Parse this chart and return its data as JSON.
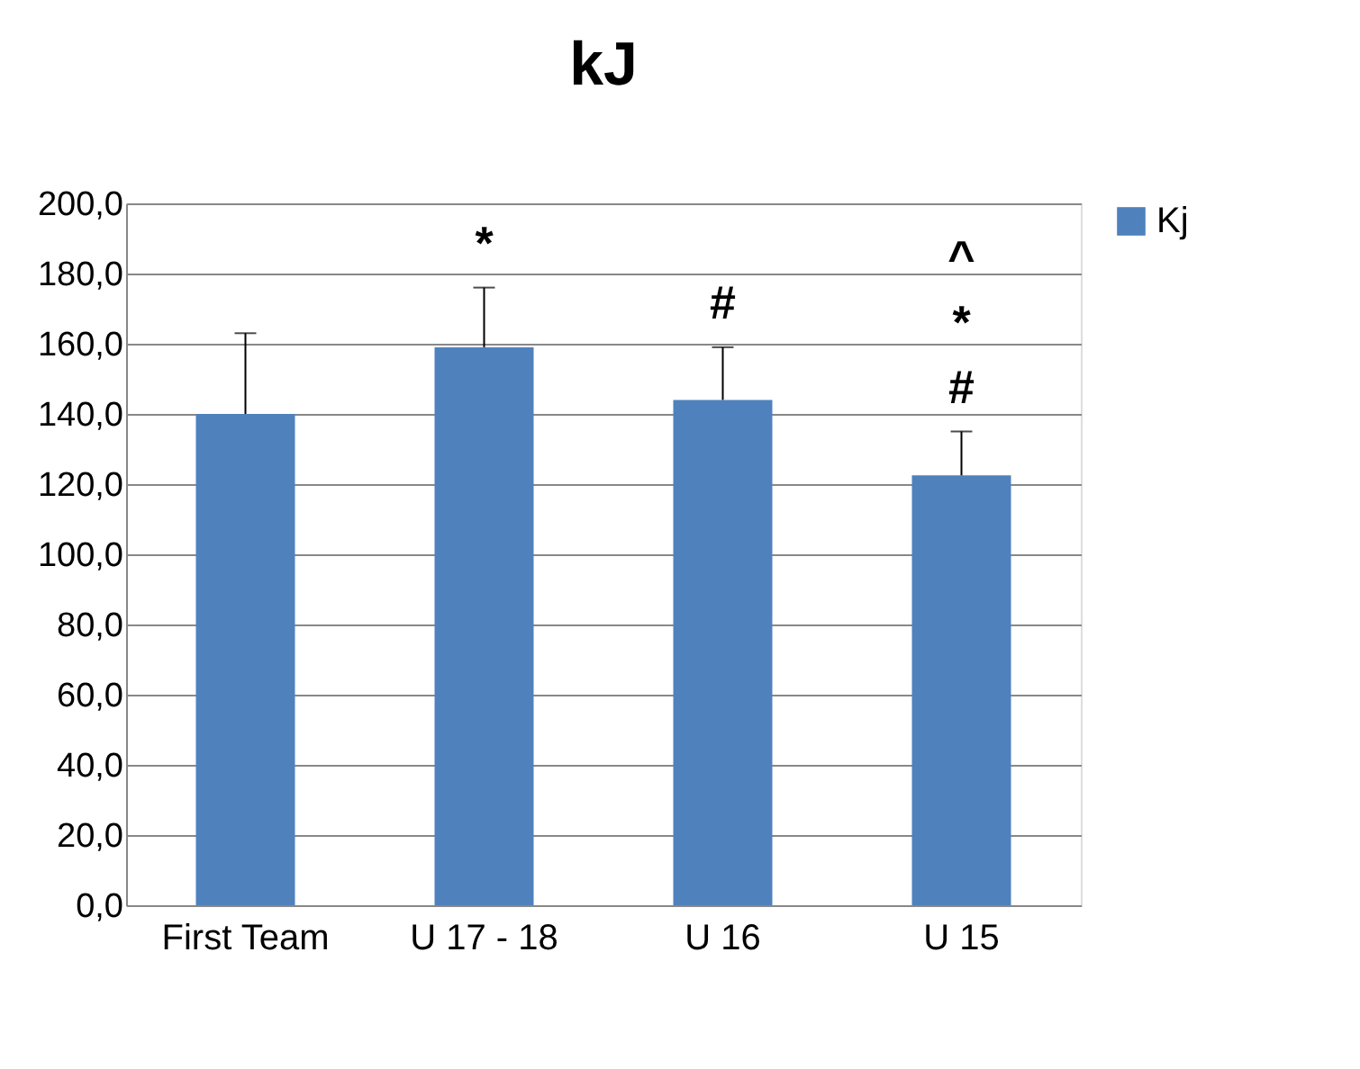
{
  "chart_data": {
    "type": "bar",
    "title": "kJ",
    "categories": [
      "First Team",
      "U 17 - 18",
      "U 16",
      "U 15"
    ],
    "series": [
      {
        "name": "Kj",
        "color": "#4f81bd",
        "values": [
          140,
          159,
          144,
          122.5
        ],
        "errors": [
          [
            140,
            163
          ],
          [
            159,
            176
          ],
          [
            144,
            159
          ],
          [
            122.5,
            135
          ]
        ]
      }
    ],
    "ylim": [
      0,
      200
    ],
    "yticks": [
      {
        "value": 0,
        "label": "0,0"
      },
      {
        "value": 20,
        "label": "20,0"
      },
      {
        "value": 40,
        "label": "40,0"
      },
      {
        "value": 60,
        "label": "60,0"
      },
      {
        "value": 80,
        "label": "80,0"
      },
      {
        "value": 100,
        "label": "100,0"
      },
      {
        "value": 120,
        "label": "120,0"
      },
      {
        "value": 140,
        "label": "140,0"
      },
      {
        "value": 160,
        "label": "160,0"
      },
      {
        "value": 180,
        "label": "180,0"
      },
      {
        "value": 200,
        "label": "200,0"
      }
    ],
    "grid": "y",
    "legend": "right",
    "annotations": [
      "*",
      "#",
      "#",
      "*",
      "^"
    ]
  }
}
